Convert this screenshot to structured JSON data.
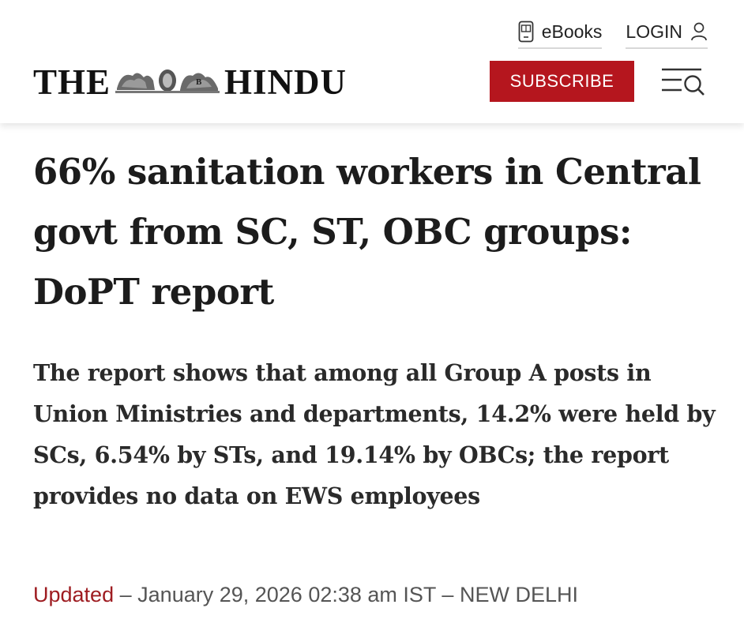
{
  "topbar": {
    "ebooks_label": "eBooks",
    "login_label": "LOGIN",
    "ebooks_icon": "ebook-reader-icon",
    "login_icon": "user-icon"
  },
  "header": {
    "logo_left": "THE",
    "logo_right": "HINDU",
    "subscribe_label": "SUBSCRIBE",
    "menu_icon": "menu-search-icon"
  },
  "colors": {
    "brand_red": "#b5161e",
    "updated_red": "#9e1c21"
  },
  "article": {
    "headline": "66% sanitation workers in Central govt from SC, ST, OBC groups: DoPT report",
    "summary": "The report shows that among all Group A posts in Union Ministries and departments, 14.2% were held by SCs, 6.54% by STs, and 19.14% by OBCs; the report provides no data on EWS employees",
    "updated_label": "Updated",
    "separator": "–",
    "date": "January 29, 2026 02:38 am IST",
    "location": "NEW DELHI"
  }
}
